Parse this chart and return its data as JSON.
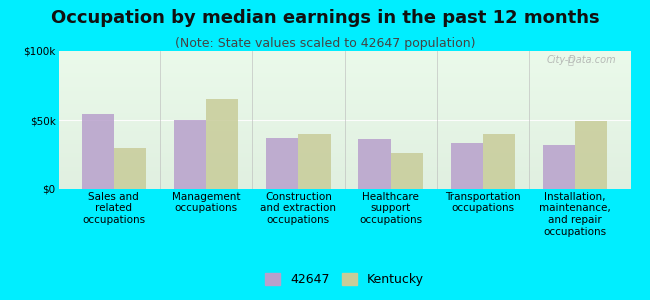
{
  "title": "Occupation by median earnings in the past 12 months",
  "subtitle": "(Note: State values scaled to 42647 population)",
  "categories": [
    "Sales and\nrelated\noccupations",
    "Management\noccupations",
    "Construction\nand extraction\noccupations",
    "Healthcare\nsupport\noccupations",
    "Transportation\noccupations",
    "Installation,\nmaintenance,\nand repair\noccupations"
  ],
  "values_42647": [
    54000,
    50000,
    37000,
    36000,
    33000,
    32000
  ],
  "values_kentucky": [
    30000,
    65000,
    40000,
    26000,
    40000,
    49000
  ],
  "color_42647": "#b8a0cc",
  "color_kentucky": "#c8cc99",
  "background_color": "#00eeff",
  "ylim": [
    0,
    100000
  ],
  "yticks": [
    0,
    50000,
    100000
  ],
  "ytick_labels": [
    "$0",
    "$50k",
    "$100k"
  ],
  "bar_width": 0.35,
  "legend_label_42647": "42647",
  "legend_label_kentucky": "Kentucky",
  "title_fontsize": 13,
  "subtitle_fontsize": 9,
  "tick_fontsize": 7.5,
  "legend_fontsize": 9
}
